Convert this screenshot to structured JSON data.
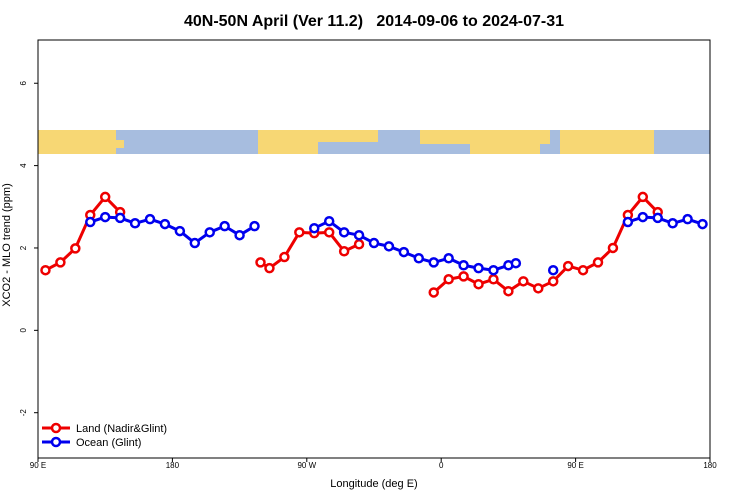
{
  "chart_data": {
    "type": "line",
    "title": "40N-50N April (Ver 11.2)   2014-09-06 to 2024-07-31",
    "xlabel": "Longitude (deg E)",
    "ylabel": "XCO2 - MLO trend (ppm)",
    "xlim": [
      90,
      540
    ],
    "ylim": [
      -3.1,
      7.05
    ],
    "xticks": [
      {
        "value": 90,
        "label": "90 E"
      },
      180,
      {
        "value": 270,
        "label": "90 W"
      },
      {
        "value": 360,
        "label": "0"
      },
      {
        "value": 450,
        "label": "90 E"
      },
      {
        "value": 540,
        "label": "180"
      }
    ],
    "yticks": [
      -2,
      0,
      2,
      4,
      6
    ],
    "legend": "bottom-left",
    "series": [
      {
        "name": "Land (Nadir&Glint)",
        "color": "#ee0000",
        "x": [
          95,
          105,
          115,
          125,
          135,
          145,
          null,
          239,
          245,
          255,
          265,
          275,
          285,
          295,
          305,
          null,
          355,
          365,
          375,
          385,
          395,
          405,
          415,
          425,
          435,
          445,
          455,
          465,
          475,
          485,
          495,
          505
        ],
        "values": [
          1.46,
          1.65,
          1.99,
          2.8,
          3.24,
          2.87,
          null,
          1.65,
          1.51,
          1.78,
          2.38,
          2.36,
          2.38,
          1.92,
          2.09,
          null,
          0.92,
          1.24,
          1.31,
          1.12,
          1.24,
          0.95,
          1.19,
          1.02,
          1.19,
          1.56,
          1.46,
          1.65,
          2.0,
          2.8,
          3.24,
          2.87
        ]
      },
      {
        "name": "Ocean (Glint)",
        "color": "#0000ee",
        "x": [
          125,
          135,
          145,
          155,
          165,
          175,
          185,
          195,
          205,
          215,
          225,
          235,
          null,
          275,
          285,
          295,
          305,
          315,
          325,
          335,
          345,
          355,
          365,
          375,
          385,
          395,
          405,
          410,
          null,
          435,
          null,
          485,
          495,
          505,
          515,
          525,
          535
        ],
        "values": [
          2.63,
          2.75,
          2.73,
          2.6,
          2.7,
          2.58,
          2.41,
          2.12,
          2.38,
          2.53,
          2.31,
          2.53,
          null,
          2.48,
          2.65,
          2.38,
          2.31,
          2.12,
          2.04,
          1.9,
          1.75,
          1.65,
          1.75,
          1.58,
          1.51,
          1.46,
          1.58,
          1.63,
          null,
          1.46,
          null,
          2.63,
          2.75,
          2.73,
          2.6,
          2.7,
          2.58
        ]
      }
    ]
  }
}
